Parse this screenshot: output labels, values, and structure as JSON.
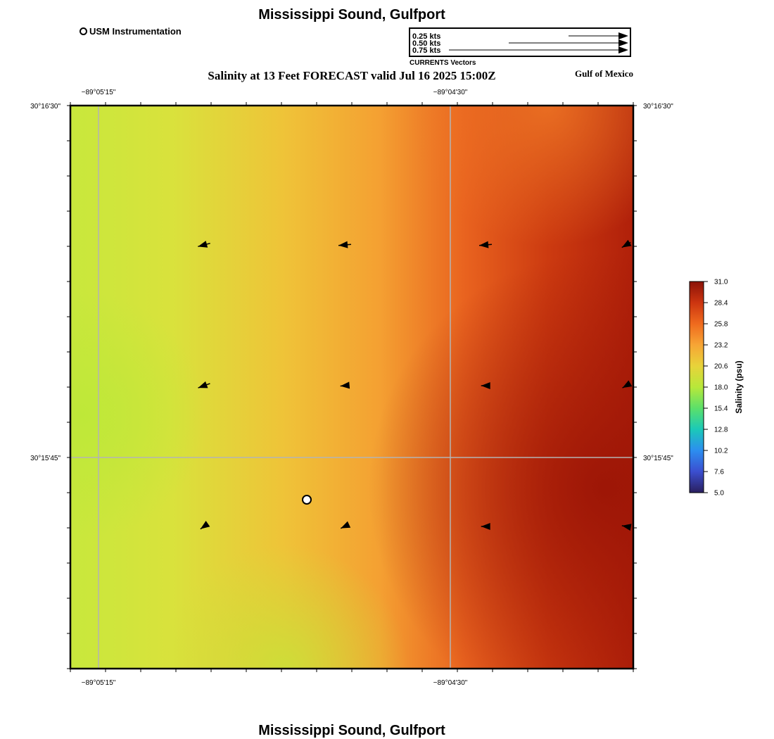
{
  "header": {
    "title": "Mississippi Sound, Gulfport",
    "subtitle": "Salinity at 13 Feet FORECAST valid Jul 16 2025 15:00Z",
    "region": "Gulf of Mexico"
  },
  "footer": {
    "title": "Mississippi Sound, Gulfport"
  },
  "legend": {
    "station_label": "USM Instrumentation",
    "vector_scale": [
      {
        "label": "0.25 kts",
        "speed": 0.25
      },
      {
        "label": "0.50 kts",
        "speed": 0.5
      },
      {
        "label": "0.75 kts",
        "speed": 0.75
      }
    ],
    "vector_caption": "CURRENTS Vectors"
  },
  "map": {
    "lon_labels": [
      "−89°05'15\"",
      "−89°04'30\""
    ],
    "lat_labels": [
      "30°16'30\"",
      "30°15'45\""
    ],
    "station": {
      "name": "USM Instrumentation",
      "col": 0.42,
      "row": 0.7
    },
    "currents": [
      {
        "speed": 0.2,
        "dir_deg": 255
      },
      {
        "speed": 0.2,
        "dir_deg": 265
      },
      {
        "speed": 0.2,
        "dir_deg": 265
      },
      {
        "speed": 0.16,
        "dir_deg": 240
      },
      {
        "speed": 0.2,
        "dir_deg": 250
      },
      {
        "speed": 0.14,
        "dir_deg": 265
      },
      {
        "speed": 0.14,
        "dir_deg": 270
      },
      {
        "speed": 0.14,
        "dir_deg": 240
      },
      {
        "speed": 0.14,
        "dir_deg": 235
      },
      {
        "speed": 0.14,
        "dir_deg": 245
      },
      {
        "speed": 0.14,
        "dir_deg": 270
      },
      {
        "speed": 0.14,
        "dir_deg": 280
      }
    ]
  },
  "colorbar": {
    "title": "Salinity (psu)",
    "min": 5.0,
    "max": 31.0,
    "ticks": [
      "31.0",
      "28.4",
      "25.8",
      "23.2",
      "20.6",
      "18.0",
      "15.4",
      "12.8",
      "10.2",
      "7.6",
      "5.0"
    ],
    "colors": [
      "#2a1f5e",
      "#3b4fd0",
      "#2c8ef0",
      "#1bc9b8",
      "#5be06a",
      "#b8e83a",
      "#e8d33a",
      "#f7a535",
      "#ef6a1e",
      "#cc3510",
      "#8b1208"
    ]
  }
}
